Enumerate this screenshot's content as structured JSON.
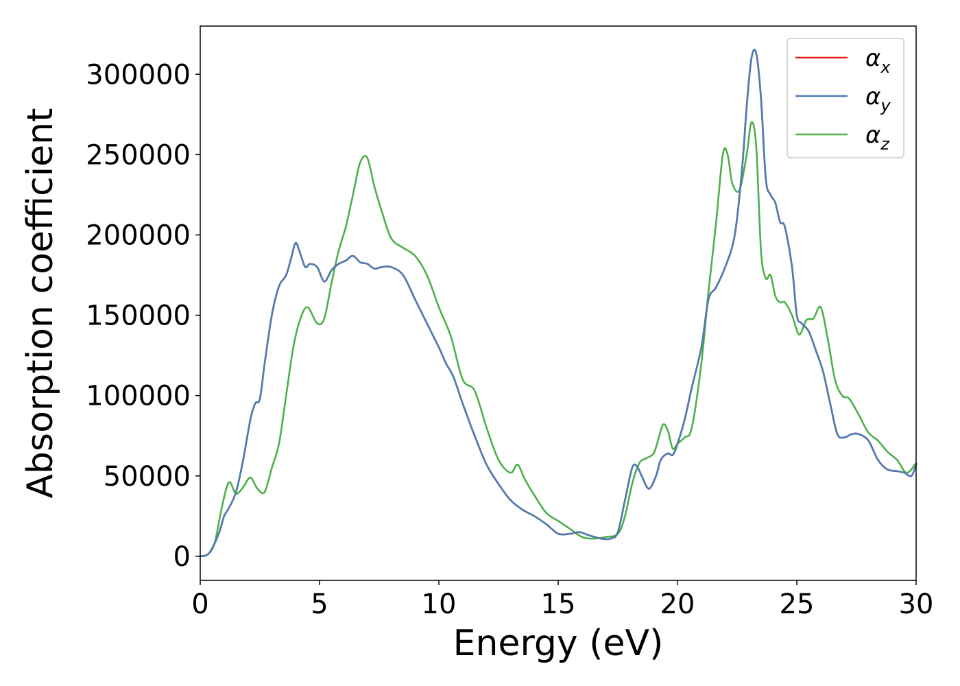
{
  "chart_data": {
    "type": "line",
    "title": "",
    "xlabel": "Energy (eV)",
    "ylabel": "Absorption coefficient",
    "xlim": [
      0,
      30
    ],
    "ylim": [
      -15000,
      330000
    ],
    "xticks": [
      0,
      5,
      10,
      15,
      20,
      25,
      30
    ],
    "xtick_labels": [
      "0",
      "5",
      "10",
      "15",
      "20",
      "25",
      "30"
    ],
    "yticks": [
      0,
      50000,
      100000,
      150000,
      200000,
      250000,
      300000
    ],
    "ytick_labels": [
      "0",
      "50000",
      "100000",
      "150000",
      "200000",
      "250000",
      "300000"
    ],
    "grid": false,
    "legend_position": "top-right",
    "series": [
      {
        "name": "αx",
        "label_base": "α",
        "label_sub": "x",
        "color": "#e41a1c",
        "x": [
          0,
          0.3,
          0.5,
          0.8,
          1.0,
          1.2,
          1.5,
          1.8,
          2.1,
          2.3,
          2.5,
          2.7,
          3.0,
          3.3,
          3.6,
          3.8,
          4.0,
          4.2,
          4.4,
          4.6,
          4.9,
          5.2,
          5.5,
          5.8,
          6.1,
          6.4,
          6.7,
          7.0,
          7.3,
          7.6,
          8.0,
          8.5,
          9.0,
          9.5,
          10.0,
          10.3,
          10.6,
          11.0,
          11.5,
          12.0,
          12.5,
          13.0,
          13.5,
          14.0,
          14.5,
          15.0,
          15.5,
          15.9,
          16.3,
          16.8,
          17.2,
          17.5,
          17.8,
          18.1,
          18.3,
          18.5,
          18.8,
          19.1,
          19.3,
          19.6,
          19.8,
          20.0,
          20.3,
          20.6,
          21.0,
          21.3,
          21.6,
          22.0,
          22.4,
          22.7,
          22.9,
          23.1,
          23.3,
          23.5,
          23.7,
          23.9,
          24.1,
          24.3,
          24.5,
          24.8,
          25.0,
          25.2,
          25.5,
          25.8,
          26.1,
          26.4,
          26.7,
          27.0,
          27.3,
          27.6,
          28.0,
          28.4,
          28.8,
          29.2,
          29.5,
          29.8,
          30.0
        ],
        "values": [
          0,
          1000,
          5000,
          15000,
          25000,
          30000,
          40000,
          60000,
          85000,
          95000,
          98000,
          120000,
          150000,
          168000,
          175000,
          185000,
          195000,
          188000,
          180000,
          182000,
          180000,
          171000,
          178000,
          182000,
          184000,
          187000,
          183000,
          182000,
          179000,
          180000,
          180000,
          175000,
          160000,
          145000,
          130000,
          120000,
          112000,
          95000,
          75000,
          57000,
          45000,
          35000,
          29000,
          25000,
          20000,
          14000,
          14000,
          15000,
          13000,
          11000,
          11000,
          15000,
          35000,
          55000,
          56000,
          50000,
          42000,
          50000,
          60000,
          64000,
          63000,
          70000,
          85000,
          105000,
          130000,
          160000,
          167000,
          180000,
          200000,
          240000,
          280000,
          310000,
          313000,
          285000,
          235000,
          225000,
          220000,
          208000,
          205000,
          180000,
          150000,
          145000,
          140000,
          128000,
          115000,
          95000,
          76000,
          74000,
          76000,
          76000,
          72000,
          60000,
          54000,
          53000,
          52000,
          50000,
          57000
        ]
      },
      {
        "name": "αy",
        "label_base": "α",
        "label_sub": "y",
        "color": "#4a7eb4",
        "x": [
          0,
          0.3,
          0.5,
          0.8,
          1.0,
          1.2,
          1.5,
          1.8,
          2.1,
          2.3,
          2.5,
          2.7,
          3.0,
          3.3,
          3.6,
          3.8,
          4.0,
          4.2,
          4.4,
          4.6,
          4.9,
          5.2,
          5.5,
          5.8,
          6.1,
          6.4,
          6.7,
          7.0,
          7.3,
          7.6,
          8.0,
          8.5,
          9.0,
          9.5,
          10.0,
          10.3,
          10.6,
          11.0,
          11.5,
          12.0,
          12.5,
          13.0,
          13.5,
          14.0,
          14.5,
          15.0,
          15.5,
          15.9,
          16.3,
          16.8,
          17.2,
          17.5,
          17.8,
          18.1,
          18.3,
          18.5,
          18.8,
          19.1,
          19.3,
          19.6,
          19.8,
          20.0,
          20.3,
          20.6,
          21.0,
          21.3,
          21.6,
          22.0,
          22.4,
          22.7,
          22.9,
          23.1,
          23.3,
          23.5,
          23.7,
          23.9,
          24.1,
          24.3,
          24.5,
          24.8,
          25.0,
          25.2,
          25.5,
          25.8,
          26.1,
          26.4,
          26.7,
          27.0,
          27.3,
          27.6,
          28.0,
          28.4,
          28.8,
          29.2,
          29.5,
          29.8,
          30.0
        ],
        "values": [
          0,
          1000,
          5000,
          15000,
          25000,
          30000,
          40000,
          60000,
          85000,
          95000,
          98000,
          120000,
          150000,
          168000,
          175000,
          185000,
          195000,
          188000,
          180000,
          182000,
          180000,
          171000,
          178000,
          182000,
          184000,
          187000,
          183000,
          182000,
          179000,
          180000,
          180000,
          175000,
          160000,
          145000,
          130000,
          120000,
          112000,
          95000,
          75000,
          57000,
          45000,
          35000,
          29000,
          25000,
          20000,
          14000,
          14000,
          15000,
          13000,
          11000,
          11000,
          15000,
          35000,
          55000,
          56000,
          50000,
          42000,
          50000,
          60000,
          64000,
          63000,
          70000,
          85000,
          105000,
          130000,
          160000,
          167000,
          180000,
          200000,
          240000,
          280000,
          310000,
          313000,
          285000,
          235000,
          225000,
          220000,
          208000,
          205000,
          180000,
          150000,
          145000,
          140000,
          128000,
          115000,
          95000,
          76000,
          74000,
          76000,
          76000,
          72000,
          60000,
          54000,
          53000,
          52000,
          50000,
          57000
        ]
      },
      {
        "name": "αz",
        "label_base": "α",
        "label_sub": "z",
        "color": "#4daf4a",
        "x": [
          0,
          0.3,
          0.6,
          0.9,
          1.2,
          1.5,
          1.8,
          2.1,
          2.4,
          2.7,
          3.0,
          3.3,
          3.6,
          3.9,
          4.2,
          4.5,
          4.9,
          5.2,
          5.5,
          5.8,
          6.1,
          6.4,
          6.7,
          7.0,
          7.3,
          7.6,
          8.0,
          8.5,
          9.0,
          9.5,
          10.0,
          10.5,
          11.0,
          11.5,
          12.0,
          12.5,
          13.0,
          13.3,
          13.6,
          14.0,
          14.5,
          15.0,
          15.5,
          16.0,
          16.5,
          17.0,
          17.5,
          17.8,
          18.1,
          18.4,
          18.7,
          19.0,
          19.2,
          19.4,
          19.6,
          19.8,
          20.0,
          20.3,
          20.6,
          21.0,
          21.3,
          21.6,
          21.9,
          22.1,
          22.3,
          22.6,
          22.9,
          23.1,
          23.3,
          23.5,
          23.7,
          23.9,
          24.1,
          24.3,
          24.5,
          24.8,
          25.1,
          25.4,
          25.7,
          26.0,
          26.3,
          26.6,
          26.9,
          27.2,
          27.6,
          28.0,
          28.4,
          28.8,
          29.2,
          29.6,
          30.0
        ],
        "values": [
          0,
          1000,
          8000,
          30000,
          46000,
          39000,
          43000,
          49000,
          42000,
          40000,
          55000,
          70000,
          100000,
          130000,
          148000,
          155000,
          145000,
          148000,
          170000,
          190000,
          205000,
          225000,
          245000,
          248000,
          230000,
          215000,
          198000,
          192000,
          187000,
          175000,
          155000,
          137000,
          110000,
          103000,
          80000,
          60000,
          52000,
          57000,
          48000,
          38000,
          27000,
          22000,
          17000,
          12000,
          11000,
          12000,
          14000,
          25000,
          45000,
          58000,
          61000,
          64000,
          73000,
          82000,
          78000,
          67000,
          70000,
          74000,
          80000,
          120000,
          165000,
          205000,
          250000,
          250000,
          232000,
          228000,
          250000,
          270000,
          255000,
          190000,
          173000,
          175000,
          162000,
          158000,
          158000,
          150000,
          138000,
          147000,
          148000,
          155000,
          135000,
          110000,
          100000,
          98000,
          88000,
          77000,
          72000,
          65000,
          60000,
          52000,
          58000
        ]
      }
    ]
  }
}
